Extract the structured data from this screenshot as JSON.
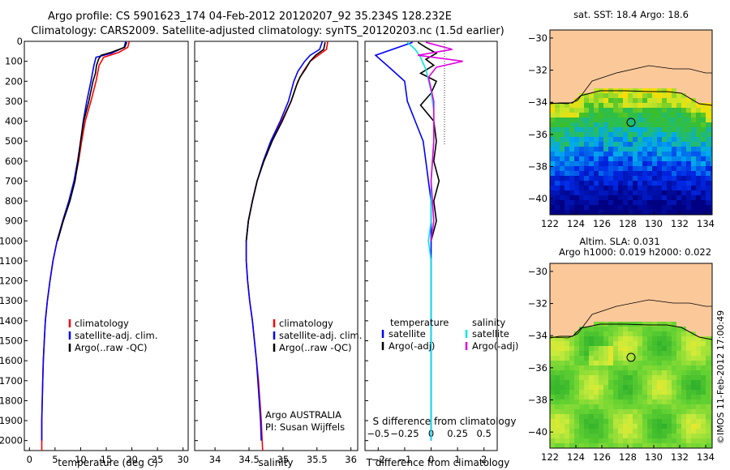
{
  "title": {
    "line1": "Argo profile: CS 5901623_174 04-Feb-2012 20120207_92 35.234S 128.232E",
    "line2": "Climatology: CARS2009. Satellite-adjusted climatology: synTS_20120203.nc (1.5d earlier)"
  },
  "footer": {
    "credit": "©IMOS 11-Feb-2012 17:00:49"
  },
  "colors": {
    "climatology": "#ff0000",
    "satellite": "#0000ff",
    "argo": "#000000",
    "satellite_s": "#00e5e5",
    "argo_s": "#e000e0",
    "land": "#fbc89a"
  },
  "chart_data": [
    {
      "type": "line",
      "id": "temperature",
      "xlabel": "temperature (deg C)",
      "ylabel": "",
      "xlim": [
        -1,
        31
      ],
      "ylim": [
        2050,
        0
      ],
      "xticks": [
        0,
        5,
        10,
        15,
        20,
        25,
        30
      ],
      "yticks": [
        0,
        100,
        200,
        300,
        400,
        500,
        600,
        700,
        800,
        900,
        1000,
        1100,
        1200,
        1300,
        1400,
        1500,
        1600,
        1700,
        1800,
        1900,
        2000
      ],
      "legend": [
        "climatology",
        "satellite-adj. clim.",
        "Argo(..raw -QC)"
      ],
      "series": [
        {
          "name": "climatology",
          "color": "#ff0000",
          "points": [
            [
              19.5,
              0
            ],
            [
              19.2,
              30
            ],
            [
              17.5,
              55
            ],
            [
              14.5,
              80
            ],
            [
              13.6,
              120
            ],
            [
              13.0,
              200
            ],
            [
              12.0,
              300
            ],
            [
              10.9,
              400
            ],
            [
              10.2,
              500
            ],
            [
              9.6,
              600
            ],
            [
              8.8,
              700
            ],
            [
              7.7,
              800
            ],
            [
              6.5,
              900
            ],
            [
              5.4,
              1000
            ],
            [
              4.6,
              1100
            ],
            [
              4.0,
              1200
            ],
            [
              3.5,
              1300
            ],
            [
              3.1,
              1400
            ],
            [
              2.9,
              1500
            ],
            [
              2.7,
              1600
            ],
            [
              2.6,
              1700
            ],
            [
              2.5,
              1800
            ],
            [
              2.4,
              1900
            ],
            [
              2.4,
              2050
            ]
          ]
        },
        {
          "name": "satellite-adj. clim.",
          "color": "#0000ff",
          "points": [
            [
              18.8,
              0
            ],
            [
              18.5,
              30
            ],
            [
              16.0,
              60
            ],
            [
              13.0,
              80
            ],
            [
              12.6,
              120
            ],
            [
              12.0,
              200
            ],
            [
              11.2,
              300
            ],
            [
              10.5,
              400
            ],
            [
              10.0,
              500
            ],
            [
              9.4,
              600
            ],
            [
              8.7,
              700
            ],
            [
              7.7,
              800
            ],
            [
              6.5,
              900
            ],
            [
              5.4,
              1000
            ],
            [
              4.6,
              1100
            ],
            [
              4.0,
              1200
            ],
            [
              3.5,
              1300
            ],
            [
              3.1,
              1400
            ],
            [
              2.9,
              1500
            ],
            [
              2.7,
              1600
            ],
            [
              2.6,
              1700
            ],
            [
              2.5,
              1800
            ],
            [
              2.4,
              1900
            ],
            [
              2.4,
              2000
            ]
          ]
        },
        {
          "name": "Argo(..raw -QC)",
          "color": "#000000",
          "points": [
            [
              19.0,
              5
            ],
            [
              18.6,
              30
            ],
            [
              16.0,
              55
            ],
            [
              14.0,
              70
            ],
            [
              13.5,
              90
            ],
            [
              13.1,
              120
            ],
            [
              12.9,
              160
            ],
            [
              12.4,
              200
            ],
            [
              11.6,
              300
            ],
            [
              10.6,
              400
            ],
            [
              10.0,
              500
            ],
            [
              9.5,
              600
            ],
            [
              8.9,
              700
            ],
            [
              7.9,
              800
            ],
            [
              6.6,
              900
            ],
            [
              5.5,
              1000
            ]
          ]
        }
      ]
    },
    {
      "type": "line",
      "id": "salinity",
      "xlabel": "salinity",
      "ylabel": "",
      "xlim": [
        33.7,
        36.1
      ],
      "ylim": [
        2050,
        0
      ],
      "xticks": [
        34,
        34.5,
        35,
        35.5,
        36
      ],
      "legend": [
        "climatology",
        "satellite-adj. clim.",
        "Argo(..raw -QC)"
      ],
      "annotation": [
        "Argo AUSTRALIA",
        "PI: Susan Wijffels"
      ],
      "series": [
        {
          "name": "climatology",
          "color": "#ff0000",
          "points": [
            [
              35.66,
              0
            ],
            [
              35.64,
              40
            ],
            [
              35.52,
              70
            ],
            [
              35.4,
              100
            ],
            [
              35.3,
              150
            ],
            [
              35.22,
              200
            ],
            [
              35.12,
              300
            ],
            [
              34.98,
              400
            ],
            [
              34.84,
              500
            ],
            [
              34.72,
              600
            ],
            [
              34.62,
              700
            ],
            [
              34.55,
              800
            ],
            [
              34.49,
              900
            ],
            [
              34.46,
              1000
            ],
            [
              34.46,
              1100
            ],
            [
              34.48,
              1200
            ],
            [
              34.51,
              1300
            ],
            [
              34.55,
              1400
            ],
            [
              34.58,
              1500
            ],
            [
              34.61,
              1600
            ],
            [
              34.64,
              1700
            ],
            [
              34.66,
              1800
            ],
            [
              34.68,
              1900
            ],
            [
              34.7,
              2050
            ]
          ]
        },
        {
          "name": "satellite-adj. clim.",
          "color": "#0000ff",
          "points": [
            [
              35.58,
              0
            ],
            [
              35.54,
              40
            ],
            [
              35.4,
              70
            ],
            [
              35.32,
              100
            ],
            [
              35.22,
              150
            ],
            [
              35.16,
              200
            ],
            [
              35.08,
              300
            ],
            [
              34.96,
              400
            ],
            [
              34.82,
              500
            ],
            [
              34.71,
              600
            ],
            [
              34.62,
              700
            ],
            [
              34.55,
              800
            ],
            [
              34.49,
              900
            ],
            [
              34.46,
              1000
            ],
            [
              34.46,
              1100
            ],
            [
              34.48,
              1200
            ],
            [
              34.51,
              1300
            ],
            [
              34.55,
              1400
            ],
            [
              34.58,
              1500
            ],
            [
              34.61,
              1600
            ],
            [
              34.63,
              1700
            ],
            [
              34.65,
              1800
            ],
            [
              34.67,
              1900
            ],
            [
              34.68,
              2000
            ]
          ]
        },
        {
          "name": "Argo(..raw -QC)",
          "color": "#000000",
          "points": [
            [
              35.62,
              5
            ],
            [
              35.6,
              40
            ],
            [
              35.48,
              70
            ],
            [
              35.4,
              100
            ],
            [
              35.33,
              140
            ],
            [
              35.25,
              180
            ],
            [
              35.2,
              220
            ],
            [
              35.12,
              300
            ],
            [
              34.99,
              400
            ],
            [
              34.84,
              500
            ],
            [
              34.72,
              600
            ],
            [
              34.62,
              700
            ],
            [
              34.55,
              800
            ],
            [
              34.49,
              900
            ],
            [
              34.46,
              1000
            ]
          ]
        }
      ]
    },
    {
      "type": "line",
      "id": "difference",
      "xlabel": "T difference from climatology",
      "xlabel_top": "S difference from climatology",
      "xlim": [
        -2.5,
        2.5
      ],
      "ylim": [
        2050,
        0
      ],
      "xticks": [
        -2,
        -1,
        0,
        1,
        2
      ],
      "xtick_labels": [
        "−2",
        "−1",
        "0",
        "1",
        "2"
      ],
      "sticks": [
        "−0.5",
        "−0.25",
        "0",
        "0.25",
        "0.5"
      ],
      "legend_t": [
        "temperature",
        "satellite",
        "Argo(-adj)"
      ],
      "legend_s": [
        "salinity",
        "satellite",
        "Argo(-adj)"
      ],
      "series": [
        {
          "name": "T satellite",
          "color": "#0000ff",
          "points": [
            [
              -0.7,
              5
            ],
            [
              -2.1,
              70
            ],
            [
              -1.5,
              140
            ],
            [
              -1.0,
              200
            ],
            [
              -0.9,
              300
            ],
            [
              -0.6,
              400
            ],
            [
              -0.3,
              500
            ],
            [
              -0.2,
              600
            ],
            [
              -0.1,
              700
            ],
            [
              0.0,
              800
            ],
            [
              0.0,
              900
            ],
            [
              0.0,
              1000
            ],
            [
              0.0,
              1200
            ],
            [
              0.0,
              2000
            ]
          ]
        },
        {
          "name": "T Argo(-adj)",
          "color": "#000000",
          "points": [
            [
              -0.5,
              5
            ],
            [
              -0.2,
              30
            ],
            [
              0.2,
              60
            ],
            [
              -0.2,
              90
            ],
            [
              0.1,
              120
            ],
            [
              -0.4,
              160
            ],
            [
              0.2,
              200
            ],
            [
              0.0,
              260
            ],
            [
              -0.4,
              320
            ],
            [
              0.1,
              400
            ],
            [
              0.2,
              500
            ],
            [
              0.1,
              600
            ],
            [
              0.3,
              700
            ],
            [
              0.1,
              800
            ],
            [
              0.2,
              900
            ],
            [
              0.0,
              1000
            ]
          ]
        },
        {
          "name": "S satellite",
          "color": "#00e5e5",
          "points": [
            [
              -0.9,
              5
            ],
            [
              -0.6,
              40
            ],
            [
              -0.4,
              80
            ],
            [
              -0.2,
              140
            ],
            [
              0.0,
              250
            ],
            [
              0.1,
              350
            ],
            [
              0.1,
              500
            ],
            [
              0.0,
              700
            ],
            [
              0.0,
              900
            ],
            [
              -0.1,
              1000
            ],
            [
              0.0,
              1100
            ],
            [
              0.0,
              1300
            ],
            [
              0.0,
              2000
            ]
          ]
        },
        {
          "name": "S Argo(-adj)",
          "color": "#e000e0",
          "points": [
            [
              -0.2,
              5
            ],
            [
              0.8,
              40
            ],
            [
              -0.5,
              70
            ],
            [
              1.2,
              100
            ],
            [
              0.2,
              130
            ],
            [
              -0.1,
              180
            ],
            [
              0.1,
              300
            ],
            [
              0.1,
              500
            ],
            [
              0.0,
              700
            ],
            [
              0.1,
              900
            ],
            [
              0.0,
              1000
            ]
          ]
        }
      ]
    },
    {
      "type": "heatmap",
      "id": "sst",
      "title": "sat. SST: 18.4 Argo: 18.6",
      "xlim": [
        122,
        134.5
      ],
      "ylim": [
        -41,
        -29.5
      ],
      "xticks": [
        122,
        124,
        126,
        128,
        130,
        132,
        134
      ],
      "yticks": [
        -30,
        -32,
        -34,
        -36,
        -38,
        -40
      ],
      "argo_position": [
        128.232,
        -35.234
      ]
    },
    {
      "type": "heatmap",
      "id": "sla",
      "title": "Altim. SLA: 0.031",
      "subtitle": "Argo h1000: 0.019 h2000: 0.022",
      "xlim": [
        122,
        134.5
      ],
      "ylim": [
        -41,
        -29.5
      ],
      "xticks": [
        122,
        124,
        126,
        128,
        130,
        132,
        134
      ],
      "yticks": [
        -30,
        -32,
        -34,
        -36,
        -38,
        -40
      ],
      "argo_position": [
        128.232,
        -35.234
      ]
    }
  ]
}
